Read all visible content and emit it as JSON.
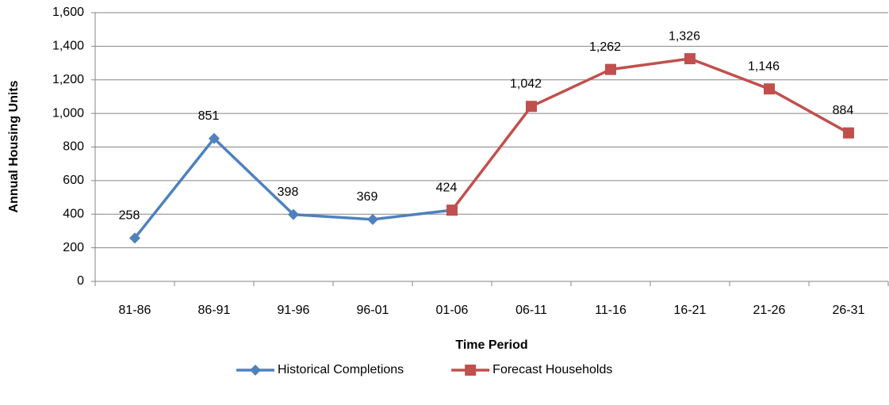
{
  "chart_data": {
    "type": "line",
    "x_label": "Time Period",
    "y_label": "Annual Housing Units",
    "categories": [
      "81-86",
      "86-91",
      "91-96",
      "96-01",
      "01-06",
      "06-11",
      "11-16",
      "16-21",
      "21-26",
      "26-31"
    ],
    "series": [
      {
        "name": "Historical Completions",
        "color": "#4f81bd",
        "marker": "diamond",
        "values": [
          258,
          851,
          398,
          369,
          424,
          null,
          null,
          null,
          null,
          null
        ],
        "value_labels": [
          "258",
          "851",
          "398",
          "369",
          "424",
          null,
          null,
          null,
          null,
          null
        ]
      },
      {
        "name": "Forecast Households",
        "color": "#c0504d",
        "marker": "square",
        "values": [
          null,
          null,
          null,
          null,
          424,
          1042,
          1262,
          1326,
          1146,
          884
        ],
        "value_labels": [
          null,
          null,
          null,
          null,
          null,
          "1,042",
          "1,262",
          "1,326",
          "1,146",
          "884"
        ]
      }
    ],
    "ylim": [
      0,
      1600
    ],
    "yticks": [
      0,
      200,
      400,
      600,
      800,
      {
        "value": 1000,
        "label": "1,000"
      },
      {
        "value": 1200,
        "label": "1,200"
      },
      {
        "value": 1400,
        "label": "1,400"
      },
      {
        "value": 1600,
        "label": "1,600"
      }
    ],
    "grid": true,
    "legend": "bottom"
  }
}
